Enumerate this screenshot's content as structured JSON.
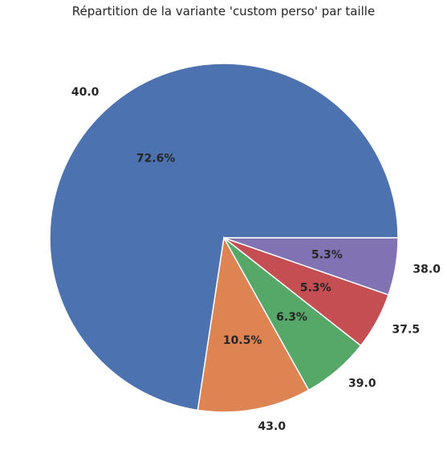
{
  "chart_data": {
    "type": "pie",
    "title": "Répartition de la variante 'custom perso' par taille",
    "categories": [
      "40.0",
      "43.0",
      "39.0",
      "37.5",
      "38.0"
    ],
    "values": [
      72.6,
      10.5,
      6.3,
      5.3,
      5.3
    ],
    "percent_labels": [
      "72.6%",
      "10.5%",
      "6.3%",
      "5.3%",
      "5.3%"
    ],
    "colors": [
      "#4c72b0",
      "#dd8452",
      "#55a868",
      "#c44e52",
      "#8172b3"
    ],
    "legend": "none"
  }
}
